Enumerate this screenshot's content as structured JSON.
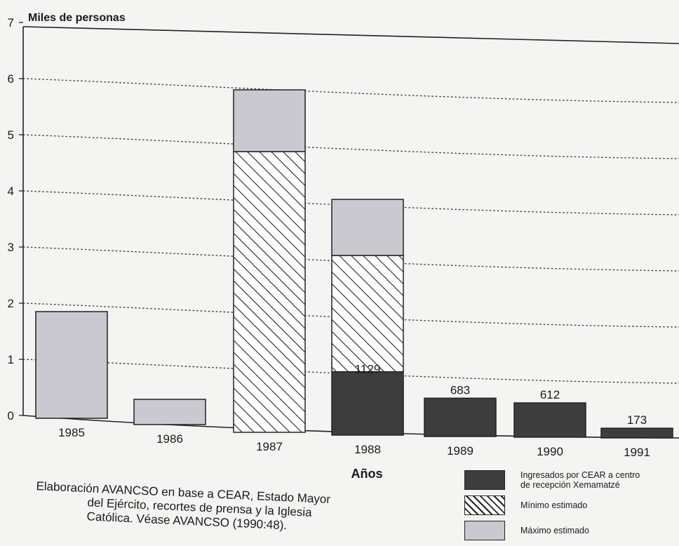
{
  "chart_data": {
    "type": "bar",
    "stacked": true,
    "title": "",
    "ylabel": "Miles de personas",
    "xlabel": "Años",
    "ylim": [
      0,
      7
    ],
    "yticks": [
      "0",
      "1",
      "2",
      "3",
      "4",
      "5",
      "6",
      "7"
    ],
    "categories": [
      "1985",
      "1986",
      "1987",
      "1988",
      "1989",
      "1990",
      "1991"
    ],
    "series": [
      {
        "name": "Ingresados por CEAR a centro de recepción Xemamatzé",
        "color": "#3d3d3d",
        "values": [
          0,
          0,
          0,
          1.129,
          0.683,
          0.612,
          0.173
        ]
      },
      {
        "name": "Mínimo estimado",
        "color": "#ffffff",
        "values": [
          0,
          0,
          5.0,
          2.07,
          0,
          0,
          0
        ]
      },
      {
        "name": "Máximo estimado",
        "color": "#c9c9cf",
        "values": [
          1.9,
          0.45,
          1.1,
          1.0,
          0,
          0,
          0
        ]
      }
    ],
    "data_labels": [
      {
        "category": "1988",
        "text": "1129"
      },
      {
        "category": "1989",
        "text": "683"
      },
      {
        "category": "1990",
        "text": "612"
      },
      {
        "category": "1991",
        "text": "173"
      }
    ],
    "grid": "dotted horizontal",
    "legend_placement": "bottom-right"
  },
  "legend": {
    "dark": "Ingresados por CEAR a centro de recepción Xemamatzé",
    "dark_line1": "Ingresados por CEAR a centro",
    "dark_line2": "de recepción Xemamatzé",
    "hatch": "Mínimo estimado",
    "light": "Máximo estimado"
  },
  "source_note": {
    "line1": "Elaboración AVANCSO en base a CEAR, Estado Mayor",
    "line2": "del Ejército, recortes de prensa y la Iglesia",
    "line3": "Católica. Véase AVANCSO (1990:48)."
  }
}
